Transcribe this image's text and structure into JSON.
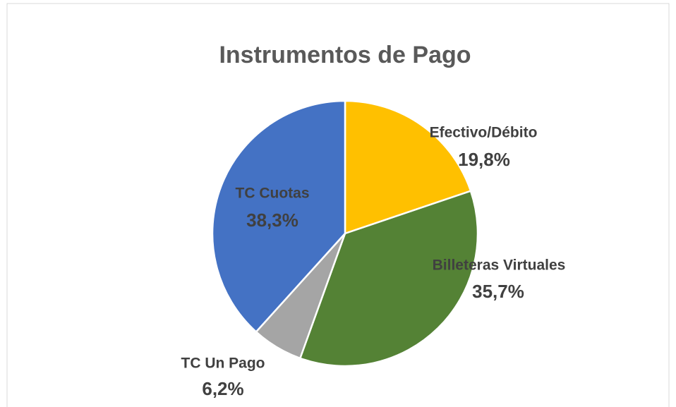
{
  "chart_data": {
    "type": "pie",
    "title": "Instrumentos de Pago",
    "categories": [
      "Efectivo/Débito",
      "Billeteras Virtuales",
      "TC Un Pago",
      "TC Cuotas"
    ],
    "values": [
      19.8,
      35.7,
      6.2,
      38.3
    ],
    "value_labels": [
      "19,8%",
      "35,7%",
      "6,2%",
      "38,3%"
    ],
    "colors": [
      "#FFC000",
      "#548235",
      "#A5A5A5",
      "#4472C4"
    ]
  }
}
